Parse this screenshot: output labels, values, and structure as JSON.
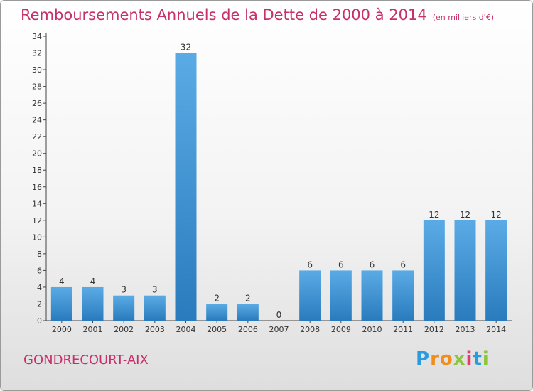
{
  "title": {
    "main": "Remboursements Annuels de la Dette de 2000 à 2014",
    "unit": "(en milliers d'€)"
  },
  "footer": {
    "city": "GONDRECOURT-AIX",
    "logo": [
      "P",
      "r",
      "o",
      "x",
      "i",
      "t",
      "i"
    ]
  },
  "colors": {
    "title": "#c8306a",
    "bar_top": "#5aabe5",
    "bar_bottom": "#2a7bbd",
    "logo": [
      "#2b9be0",
      "#f28c1a",
      "#f28c1a",
      "#8cc63f",
      "#e53a6d",
      "#2b9be0",
      "#8cc63f"
    ]
  },
  "chart_data": {
    "type": "bar",
    "categories": [
      "2000",
      "2001",
      "2002",
      "2003",
      "2004",
      "2005",
      "2006",
      "2007",
      "2008",
      "2009",
      "2010",
      "2011",
      "2012",
      "2013",
      "2014"
    ],
    "values": [
      4,
      4,
      3,
      3,
      32,
      2,
      2,
      0,
      6,
      6,
      6,
      6,
      12,
      12,
      12
    ],
    "data_labels": [
      "4",
      "4",
      "3",
      "3",
      "32",
      "2",
      "2",
      "0",
      "6",
      "6",
      "6",
      "6",
      "12",
      "12",
      "12"
    ],
    "ylim": [
      0,
      34
    ],
    "yticks": [
      0,
      2,
      4,
      6,
      8,
      10,
      12,
      14,
      16,
      18,
      20,
      22,
      24,
      26,
      28,
      30,
      32,
      34
    ],
    "grid": false,
    "legend": "none"
  }
}
